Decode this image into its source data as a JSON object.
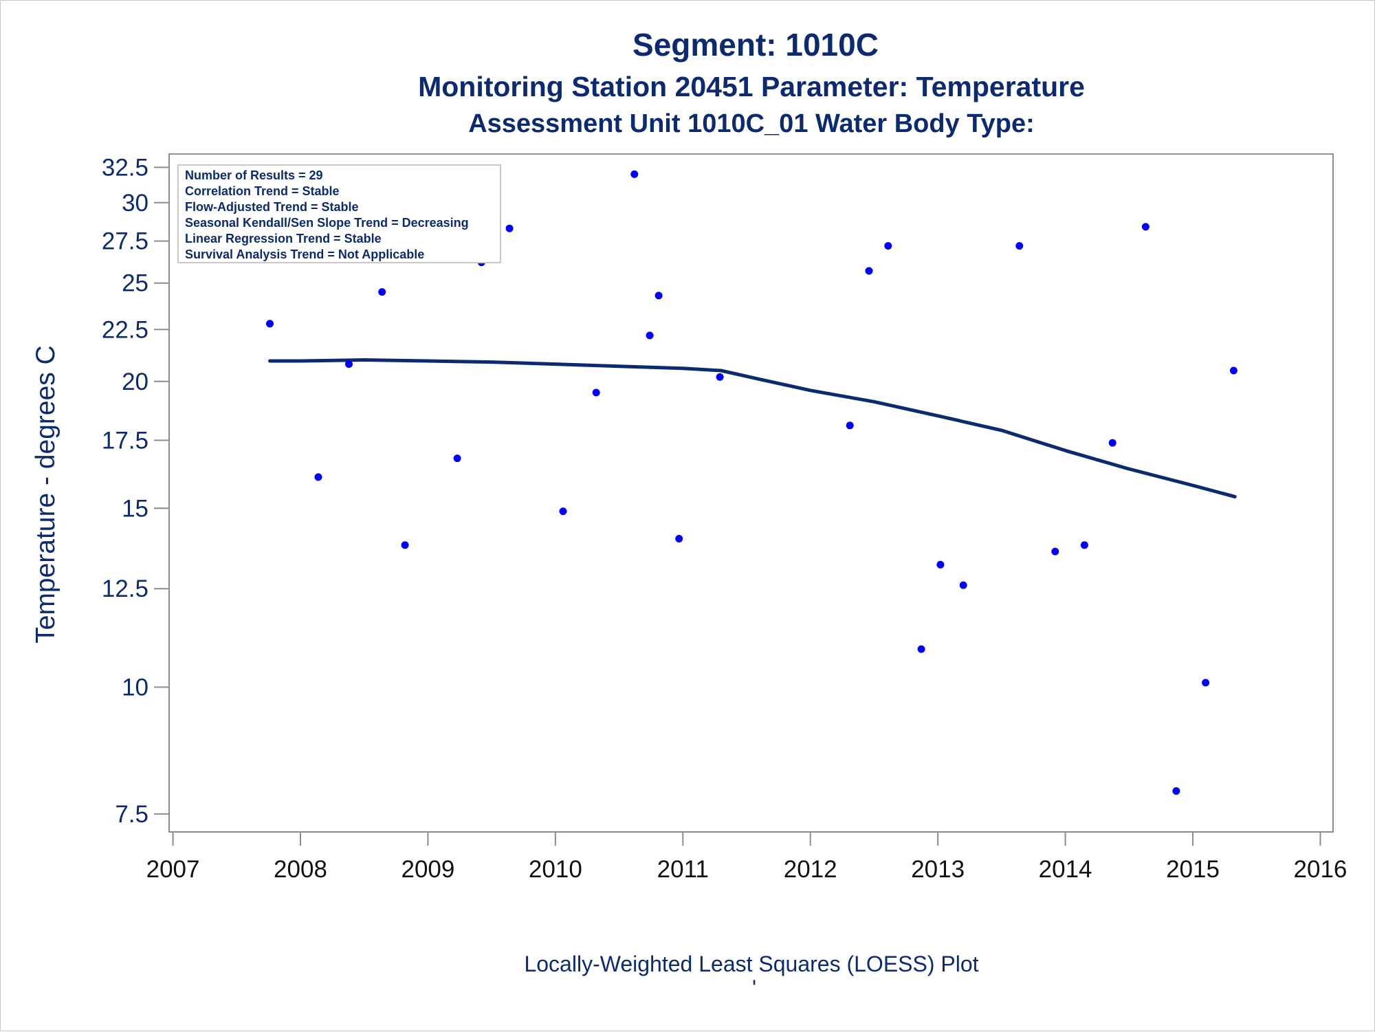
{
  "chart_data": {
    "type": "scatter",
    "title": "Segment: 1010C",
    "subtitle": "Monitoring Station 20451 Parameter: Temperature",
    "subtitle2": "Assessment Unit 1010C_01   Water Body Type:",
    "ylabel": "Temperature - degrees C",
    "xlabel": "",
    "footnote": "Locally-Weighted Least Squares (LOESS) Plot",
    "footnote_mark": "'",
    "yscale": "log",
    "ylim": [
      7.2,
      33.5
    ],
    "xlim": [
      2006.97,
      2016.1
    ],
    "yticks": [
      7.5,
      10,
      12.5,
      15,
      17.5,
      20,
      22.5,
      25,
      27.5,
      30,
      32.5
    ],
    "ytick_labels": [
      "7.5",
      "10",
      "12.5",
      "15",
      "17.5",
      "20",
      "22.5",
      "25",
      "27.5",
      "30",
      "32.5"
    ],
    "xticks": [
      2007,
      2008,
      2009,
      2010,
      2011,
      2012,
      2013,
      2014,
      2015,
      2016
    ],
    "xtick_labels": [
      "2007",
      "2008",
      "2009",
      "2010",
      "2011",
      "2012",
      "2013",
      "2014",
      "2015",
      "2016"
    ],
    "grid": false,
    "stats_box": [
      "Number of Results = 29",
      "Correlation Trend = Stable",
      "Flow-Adjusted Trend = Stable",
      "Seasonal Kendall/Sen Slope Trend = Decreasing",
      "Linear Regression Trend = Stable",
      "Survival Analysis Trend = Not Applicable"
    ],
    "stats_box_placement": "top-left",
    "points": {
      "x": [
        2007.76,
        2008.14,
        2008.38,
        2008.64,
        2008.82,
        2009.23,
        2009.42,
        2009.64,
        2010.06,
        2010.32,
        2010.62,
        2010.74,
        2010.81,
        2010.97,
        2011.29,
        2012.31,
        2012.46,
        2012.61,
        2012.87,
        2013.02,
        2013.2,
        2013.64,
        2013.92,
        2014.15,
        2014.37,
        2014.63,
        2014.87,
        2015.1,
        2015.32
      ],
      "y": [
        22.8,
        16.1,
        20.8,
        24.5,
        13.8,
        16.8,
        26.2,
        28.3,
        14.9,
        19.5,
        32.0,
        22.2,
        24.3,
        14.0,
        20.2,
        18.1,
        25.7,
        27.2,
        10.9,
        13.2,
        12.6,
        27.2,
        13.6,
        13.8,
        17.4,
        28.4,
        7.9,
        10.1,
        20.5
      ]
    },
    "loess": {
      "x": [
        2007.76,
        2008.0,
        2008.5,
        2009.0,
        2009.5,
        2010.0,
        2010.5,
        2011.0,
        2011.3,
        2011.6,
        2012.0,
        2012.5,
        2013.0,
        2013.5,
        2014.0,
        2014.5,
        2015.0,
        2015.33
      ],
      "y": [
        20.95,
        20.95,
        21.0,
        20.95,
        20.9,
        20.8,
        20.7,
        20.6,
        20.5,
        20.1,
        19.6,
        19.1,
        18.5,
        17.9,
        17.1,
        16.4,
        15.8,
        15.4
      ]
    },
    "colors": {
      "points": "#0000ff",
      "loess": "#0b2a6f",
      "text": "#0b2a6f",
      "frame": "#8c8c8c"
    }
  }
}
